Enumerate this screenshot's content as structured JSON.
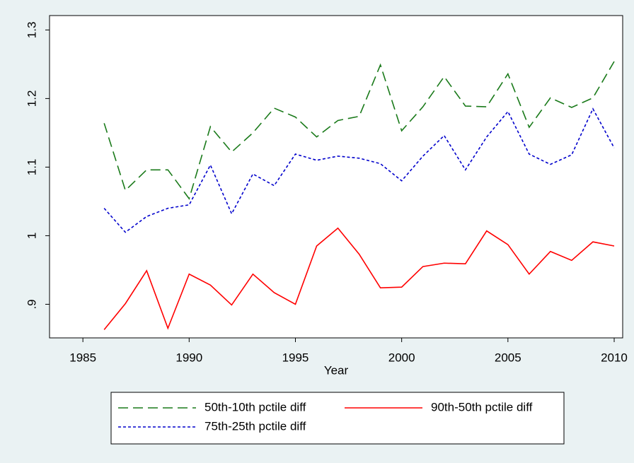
{
  "chart_data": {
    "type": "line",
    "x_label": "Year",
    "x": [
      1986,
      1987,
      1988,
      1989,
      1990,
      1991,
      1992,
      1993,
      1994,
      1995,
      1996,
      1997,
      1998,
      1999,
      2000,
      2001,
      2002,
      2003,
      2004,
      2005,
      2006,
      2007,
      2008,
      2009,
      2010
    ],
    "series": [
      {
        "name": "50th-10th pctile diff",
        "color": "#1a7a1a",
        "dash": "14 7",
        "values": [
          1.164,
          1.066,
          1.096,
          1.096,
          1.054,
          1.159,
          1.122,
          1.15,
          1.186,
          1.173,
          1.144,
          1.168,
          1.174,
          1.249,
          1.153,
          1.188,
          1.232,
          1.189,
          1.188,
          1.236,
          1.158,
          1.201,
          1.187,
          1.201,
          1.254
        ]
      },
      {
        "name": "90th-50th pctile diff",
        "color": "#ff0000",
        "dash": "none",
        "values": [
          0.863,
          0.901,
          0.949,
          0.865,
          0.944,
          0.928,
          0.899,
          0.944,
          0.917,
          0.9,
          0.985,
          1.011,
          0.973,
          0.924,
          0.925,
          0.955,
          0.96,
          0.959,
          1.007,
          0.987,
          0.944,
          0.977,
          0.964,
          0.991,
          0.985
        ]
      },
      {
        "name": "75th-25th pctile diff",
        "color": "#0000cc",
        "dash": "4 3",
        "values": [
          1.04,
          1.005,
          1.028,
          1.04,
          1.045,
          1.103,
          1.032,
          1.09,
          1.073,
          1.119,
          1.11,
          1.116,
          1.113,
          1.105,
          1.08,
          1.116,
          1.146,
          1.096,
          1.144,
          1.181,
          1.119,
          1.104,
          1.118,
          1.185,
          1.128
        ]
      }
    ],
    "xlim": [
      1983.43,
      2010.4
    ],
    "xticks": [
      1985,
      1990,
      1995,
      2000,
      2005,
      2010
    ],
    "ylim": [
      0.851,
      1.321
    ],
    "yticks": [
      {
        "value": 0.9,
        "label": ".9"
      },
      1,
      1.1,
      1.2,
      1.3
    ]
  }
}
